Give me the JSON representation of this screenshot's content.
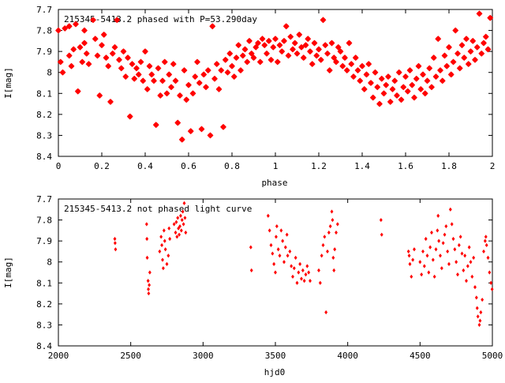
{
  "chart_data": [
    {
      "type": "scatter",
      "title": "215345-5413.2 phased with P=53.290day",
      "xlabel": "phase",
      "ylabel": "I[mag]",
      "xlim": [
        0,
        2
      ],
      "ylim": [
        7.7,
        8.4
      ],
      "y_inverted": true,
      "grid": false,
      "marker": "star",
      "color": "#ff0000",
      "x_ticks": [
        "0",
        "0.2",
        "0.4",
        "0.6",
        "0.8",
        "1",
        "1.2",
        "1.4",
        "1.6",
        "1.8",
        "2"
      ],
      "y_ticks": [
        "7.7",
        "7.8",
        "7.9",
        "8",
        "8.1",
        "8.2",
        "8.3",
        "8.4"
      ],
      "points": [
        [
          0.0,
          7.8
        ],
        [
          0.01,
          7.95
        ],
        [
          0.02,
          8.0
        ],
        [
          0.03,
          7.79
        ],
        [
          0.05,
          7.92
        ],
        [
          0.05,
          7.78
        ],
        [
          0.06,
          7.97
        ],
        [
          0.07,
          7.89
        ],
        [
          0.08,
          7.77
        ],
        [
          0.09,
          8.09
        ],
        [
          0.1,
          7.88
        ],
        [
          0.11,
          7.95
        ],
        [
          0.12,
          7.8
        ],
        [
          0.12,
          7.86
        ],
        [
          0.13,
          7.91
        ],
        [
          0.14,
          7.96
        ],
        [
          0.16,
          7.75
        ],
        [
          0.17,
          7.84
        ],
        [
          0.18,
          7.92
        ],
        [
          0.19,
          8.11
        ],
        [
          0.2,
          7.87
        ],
        [
          0.21,
          7.82
        ],
        [
          0.22,
          7.93
        ],
        [
          0.23,
          7.97
        ],
        [
          0.24,
          8.14
        ],
        [
          0.25,
          7.91
        ],
        [
          0.26,
          7.88
        ],
        [
          0.27,
          7.75
        ],
        [
          0.28,
          7.94
        ],
        [
          0.29,
          7.98
        ],
        [
          0.3,
          7.9
        ],
        [
          0.31,
          8.02
        ],
        [
          0.32,
          7.93
        ],
        [
          0.33,
          8.21
        ],
        [
          0.34,
          7.96
        ],
        [
          0.35,
          8.03
        ],
        [
          0.36,
          7.98
        ],
        [
          0.37,
          8.01
        ],
        [
          0.38,
          7.95
        ],
        [
          0.39,
          8.04
        ],
        [
          0.4,
          7.9
        ],
        [
          0.41,
          8.08
        ],
        [
          0.42,
          7.97
        ],
        [
          0.43,
          8.01
        ],
        [
          0.44,
          8.04
        ],
        [
          0.45,
          8.25
        ],
        [
          0.46,
          7.98
        ],
        [
          0.47,
          8.11
        ],
        [
          0.48,
          8.04
        ],
        [
          0.49,
          7.95
        ],
        [
          0.5,
          8.1
        ],
        [
          0.51,
          8.01
        ],
        [
          0.52,
          8.07
        ],
        [
          0.53,
          7.96
        ],
        [
          0.54,
          8.04
        ],
        [
          0.55,
          8.24
        ],
        [
          0.56,
          8.11
        ],
        [
          0.57,
          8.32
        ],
        [
          0.58,
          7.99
        ],
        [
          0.59,
          8.13
        ],
        [
          0.6,
          8.06
        ],
        [
          0.61,
          8.28
        ],
        [
          0.62,
          8.1
        ],
        [
          0.63,
          8.02
        ],
        [
          0.64,
          7.95
        ],
        [
          0.65,
          8.05
        ],
        [
          0.66,
          8.27
        ],
        [
          0.67,
          8.01
        ],
        [
          0.68,
          8.07
        ],
        [
          0.69,
          7.99
        ],
        [
          0.7,
          8.3
        ],
        [
          0.71,
          7.78
        ],
        [
          0.72,
          8.03
        ],
        [
          0.73,
          7.96
        ],
        [
          0.74,
          8.08
        ],
        [
          0.75,
          7.99
        ],
        [
          0.76,
          8.26
        ],
        [
          0.77,
          7.94
        ],
        [
          0.78,
          8.0
        ],
        [
          0.79,
          7.91
        ],
        [
          0.8,
          7.97
        ],
        [
          0.81,
          8.02
        ],
        [
          0.82,
          7.93
        ],
        [
          0.83,
          7.87
        ],
        [
          0.84,
          7.99
        ],
        [
          0.85,
          7.92
        ],
        [
          0.86,
          7.89
        ],
        [
          0.87,
          7.95
        ],
        [
          0.88,
          7.85
        ],
        [
          0.89,
          7.91
        ],
        [
          0.9,
          7.93
        ],
        [
          0.91,
          7.88
        ],
        [
          0.92,
          7.86
        ],
        [
          0.93,
          7.95
        ],
        [
          0.94,
          7.84
        ],
        [
          0.95,
          7.87
        ],
        [
          0.96,
          7.91
        ],
        [
          0.97,
          7.85
        ],
        [
          0.98,
          7.94
        ],
        [
          0.99,
          7.88
        ],
        [
          1.0,
          7.84
        ],
        [
          1.01,
          7.95
        ],
        [
          1.02,
          7.87
        ],
        [
          1.03,
          7.9
        ],
        [
          1.04,
          7.85
        ],
        [
          1.05,
          7.78
        ],
        [
          1.06,
          7.92
        ],
        [
          1.07,
          7.83
        ],
        [
          1.08,
          7.89
        ],
        [
          1.09,
          7.86
        ],
        [
          1.1,
          7.91
        ],
        [
          1.11,
          7.82
        ],
        [
          1.12,
          7.88
        ],
        [
          1.13,
          7.93
        ],
        [
          1.14,
          7.87
        ],
        [
          1.15,
          7.84
        ],
        [
          1.16,
          7.9
        ],
        [
          1.17,
          7.96
        ],
        [
          1.18,
          7.86
        ],
        [
          1.19,
          7.92
        ],
        [
          1.2,
          7.89
        ],
        [
          1.21,
          7.94
        ],
        [
          1.22,
          7.75
        ],
        [
          1.23,
          7.87
        ],
        [
          1.24,
          7.91
        ],
        [
          1.25,
          7.99
        ],
        [
          1.26,
          7.86
        ],
        [
          1.27,
          7.93
        ],
        [
          1.28,
          7.95
        ],
        [
          1.29,
          7.88
        ],
        [
          1.3,
          7.9
        ],
        [
          1.31,
          7.97
        ],
        [
          1.32,
          7.93
        ],
        [
          1.33,
          7.99
        ],
        [
          1.34,
          7.86
        ],
        [
          1.35,
          7.96
        ],
        [
          1.36,
          8.02
        ],
        [
          1.37,
          7.93
        ],
        [
          1.38,
          7.99
        ],
        [
          1.39,
          8.04
        ],
        [
          1.4,
          7.97
        ],
        [
          1.41,
          8.08
        ],
        [
          1.42,
          8.01
        ],
        [
          1.43,
          7.96
        ],
        [
          1.44,
          8.05
        ],
        [
          1.45,
          8.12
        ],
        [
          1.46,
          8.0
        ],
        [
          1.47,
          8.07
        ],
        [
          1.48,
          8.15
        ],
        [
          1.49,
          8.03
        ],
        [
          1.5,
          8.1
        ],
        [
          1.51,
          8.06
        ],
        [
          1.52,
          8.02
        ],
        [
          1.53,
          8.14
        ],
        [
          1.54,
          8.08
        ],
        [
          1.55,
          8.04
        ],
        [
          1.56,
          8.11
        ],
        [
          1.57,
          8.0
        ],
        [
          1.58,
          8.13
        ],
        [
          1.59,
          8.07
        ],
        [
          1.6,
          8.02
        ],
        [
          1.61,
          8.09
        ],
        [
          1.62,
          7.99
        ],
        [
          1.63,
          8.06
        ],
        [
          1.64,
          8.12
        ],
        [
          1.65,
          8.03
        ],
        [
          1.66,
          7.97
        ],
        [
          1.67,
          8.08
        ],
        [
          1.68,
          8.01
        ],
        [
          1.69,
          8.1
        ],
        [
          1.7,
          8.04
        ],
        [
          1.71,
          7.98
        ],
        [
          1.72,
          8.07
        ],
        [
          1.73,
          7.93
        ],
        [
          1.74,
          8.02
        ],
        [
          1.75,
          7.84
        ],
        [
          1.76,
          7.99
        ],
        [
          1.77,
          8.04
        ],
        [
          1.78,
          7.92
        ],
        [
          1.79,
          7.97
        ],
        [
          1.8,
          7.88
        ],
        [
          1.81,
          8.01
        ],
        [
          1.82,
          7.95
        ],
        [
          1.83,
          7.8
        ],
        [
          1.84,
          7.91
        ],
        [
          1.85,
          7.98
        ],
        [
          1.86,
          7.87
        ],
        [
          1.87,
          7.93
        ],
        [
          1.88,
          7.84
        ],
        [
          1.89,
          7.96
        ],
        [
          1.9,
          7.9
        ],
        [
          1.91,
          7.85
        ],
        [
          1.92,
          7.94
        ],
        [
          1.93,
          7.88
        ],
        [
          1.94,
          7.72
        ],
        [
          1.95,
          7.91
        ],
        [
          1.96,
          7.86
        ],
        [
          1.97,
          7.83
        ],
        [
          1.98,
          7.89
        ],
        [
          1.99,
          7.74
        ]
      ]
    },
    {
      "type": "scatter",
      "title": "215345-5413.2 not phased light curve",
      "xlabel": "hjd0",
      "ylabel": "I[mag]",
      "xlim": [
        2000,
        5000
      ],
      "ylim": [
        7.7,
        8.4
      ],
      "y_inverted": true,
      "grid": false,
      "marker": "diamond",
      "color": "#ff0000",
      "x_ticks": [
        "2000",
        "2500",
        "3000",
        "3500",
        "4000",
        "4500",
        "5000"
      ],
      "y_ticks": [
        "7.7",
        "7.8",
        "7.9",
        "8",
        "8.1",
        "8.2",
        "8.3",
        "8.4"
      ],
      "points": [
        [
          2390,
          7.89
        ],
        [
          2392,
          7.91
        ],
        [
          2395,
          7.94
        ],
        [
          2610,
          7.82
        ],
        [
          2612,
          7.89
        ],
        [
          2614,
          7.98
        ],
        [
          2620,
          8.09
        ],
        [
          2622,
          8.13
        ],
        [
          2624,
          8.15
        ],
        [
          2628,
          8.11
        ],
        [
          2632,
          8.05
        ],
        [
          2700,
          7.95
        ],
        [
          2710,
          7.88
        ],
        [
          2715,
          7.92
        ],
        [
          2720,
          7.99
        ],
        [
          2725,
          8.03
        ],
        [
          2730,
          7.85
        ],
        [
          2735,
          7.9
        ],
        [
          2740,
          7.94
        ],
        [
          2750,
          8.01
        ],
        [
          2760,
          7.97
        ],
        [
          2765,
          7.84
        ],
        [
          2770,
          7.89
        ],
        [
          2800,
          7.82
        ],
        [
          2810,
          7.86
        ],
        [
          2815,
          7.81
        ],
        [
          2820,
          7.88
        ],
        [
          2825,
          7.79
        ],
        [
          2830,
          7.84
        ],
        [
          2835,
          7.87
        ],
        [
          2840,
          7.83
        ],
        [
          2845,
          7.78
        ],
        [
          2850,
          7.85
        ],
        [
          2855,
          7.8
        ],
        [
          2860,
          7.76
        ],
        [
          2865,
          7.82
        ],
        [
          2870,
          7.72
        ],
        [
          2875,
          7.79
        ],
        [
          2880,
          7.86
        ],
        [
          3330,
          7.93
        ],
        [
          3335,
          8.04
        ],
        [
          3450,
          7.78
        ],
        [
          3460,
          7.85
        ],
        [
          3470,
          7.92
        ],
        [
          3480,
          7.96
        ],
        [
          3490,
          8.01
        ],
        [
          3500,
          8.05
        ],
        [
          3505,
          7.88
        ],
        [
          3510,
          7.83
        ],
        [
          3520,
          7.94
        ],
        [
          3530,
          7.97
        ],
        [
          3540,
          7.85
        ],
        [
          3550,
          7.9
        ],
        [
          3560,
          8.0
        ],
        [
          3570,
          7.93
        ],
        [
          3580,
          7.87
        ],
        [
          3585,
          7.97
        ],
        [
          3600,
          7.95
        ],
        [
          3610,
          8.02
        ],
        [
          3620,
          8.07
        ],
        [
          3630,
          8.03
        ],
        [
          3640,
          7.98
        ],
        [
          3650,
          8.1
        ],
        [
          3660,
          8.05
        ],
        [
          3670,
          8.01
        ],
        [
          3680,
          8.08
        ],
        [
          3690,
          8.04
        ],
        [
          3700,
          8.09
        ],
        [
          3710,
          8.06
        ],
        [
          3720,
          8.02
        ],
        [
          3730,
          8.05
        ],
        [
          3740,
          8.09
        ],
        [
          3800,
          8.04
        ],
        [
          3810,
          8.1
        ],
        [
          3820,
          7.97
        ],
        [
          3830,
          7.92
        ],
        [
          3840,
          7.88
        ],
        [
          3850,
          8.24
        ],
        [
          3860,
          7.95
        ],
        [
          3870,
          7.86
        ],
        [
          3880,
          7.83
        ],
        [
          3890,
          7.76
        ],
        [
          3895,
          7.8
        ],
        [
          3900,
          7.98
        ],
        [
          3905,
          8.04
        ],
        [
          3910,
          7.94
        ],
        [
          3920,
          7.86
        ],
        [
          3930,
          7.82
        ],
        [
          4230,
          7.8
        ],
        [
          4235,
          7.87
        ],
        [
          4420,
          7.95
        ],
        [
          4425,
          7.97
        ],
        [
          4430,
          8.01
        ],
        [
          4440,
          8.07
        ],
        [
          4450,
          7.99
        ],
        [
          4460,
          7.94
        ],
        [
          4500,
          8.0
        ],
        [
          4510,
          8.06
        ],
        [
          4520,
          7.95
        ],
        [
          4530,
          8.02
        ],
        [
          4540,
          7.89
        ],
        [
          4550,
          7.97
        ],
        [
          4560,
          8.05
        ],
        [
          4570,
          7.93
        ],
        [
          4580,
          7.86
        ],
        [
          4590,
          7.99
        ],
        [
          4600,
          8.07
        ],
        [
          4610,
          7.94
        ],
        [
          4620,
          7.85
        ],
        [
          4625,
          7.78
        ],
        [
          4630,
          7.9
        ],
        [
          4640,
          7.97
        ],
        [
          4650,
          8.03
        ],
        [
          4660,
          7.91
        ],
        [
          4670,
          7.87
        ],
        [
          4680,
          7.83
        ],
        [
          4690,
          7.95
        ],
        [
          4700,
          8.01
        ],
        [
          4710,
          7.75
        ],
        [
          4720,
          7.82
        ],
        [
          4730,
          7.89
        ],
        [
          4740,
          7.94
        ],
        [
          4750,
          8.0
        ],
        [
          4760,
          8.06
        ],
        [
          4770,
          7.92
        ],
        [
          4780,
          7.88
        ],
        [
          4790,
          7.96
        ],
        [
          4800,
          8.04
        ],
        [
          4810,
          7.97
        ],
        [
          4820,
          8.09
        ],
        [
          4830,
          8.02
        ],
        [
          4840,
          7.93
        ],
        [
          4850,
          8.0
        ],
        [
          4860,
          8.07
        ],
        [
          4870,
          7.98
        ],
        [
          4880,
          8.12
        ],
        [
          4890,
          8.17
        ],
        [
          4895,
          8.22
        ],
        [
          4900,
          8.26
        ],
        [
          4910,
          8.3
        ],
        [
          4915,
          8.28
        ],
        [
          4920,
          8.24
        ],
        [
          4930,
          8.18
        ],
        [
          4940,
          7.95
        ],
        [
          4950,
          7.9
        ],
        [
          4955,
          7.88
        ],
        [
          4960,
          7.92
        ],
        [
          4970,
          7.98
        ],
        [
          4980,
          8.05
        ],
        [
          4990,
          8.1
        ],
        [
          4998,
          8.13
        ]
      ]
    }
  ]
}
